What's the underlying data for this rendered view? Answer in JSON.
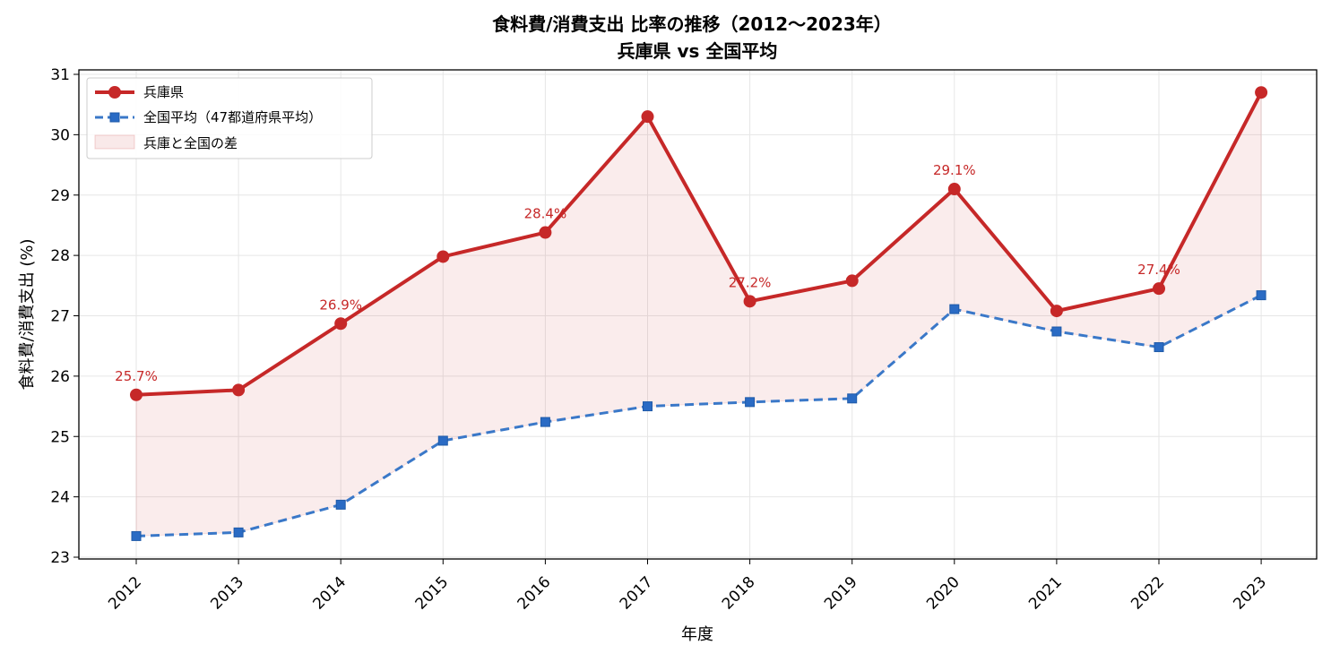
{
  "chart_data": {
    "type": "line",
    "title": "食料費/消費支出 比率の推移（2012〜2023年）",
    "subtitle": "兵庫県 vs 全国平均",
    "xlabel": "年度",
    "ylabel": "食料費/消費支出 (%)",
    "ylim": [
      23,
      31
    ],
    "yticks": [
      "23",
      "24",
      "25",
      "26",
      "27",
      "28",
      "29",
      "30",
      "31"
    ],
    "categories": [
      "2012",
      "2013",
      "2014",
      "2015",
      "2016",
      "2017",
      "2018",
      "2019",
      "2020",
      "2021",
      "2022",
      "2023"
    ],
    "series": [
      {
        "name": "兵庫県",
        "color": "#c62828",
        "marker": "circle",
        "line_style": "solid",
        "values": [
          25.69,
          25.77,
          26.87,
          27.98,
          28.38,
          30.3,
          27.24,
          27.58,
          29.1,
          27.08,
          27.45,
          30.7
        ]
      },
      {
        "name": "全国平均（47都道府県平均）",
        "color": "#3a78c8",
        "marker": "square",
        "line_style": "dashed",
        "values": [
          23.35,
          23.41,
          23.87,
          24.93,
          25.24,
          25.5,
          25.57,
          25.63,
          27.11,
          26.74,
          26.48,
          27.34
        ]
      }
    ],
    "fill_between": {
      "name": "兵庫と全国の差",
      "color": "#c62828"
    },
    "annotations": [
      {
        "x": "2012",
        "text": "25.7%"
      },
      {
        "x": "2014",
        "text": "26.9%"
      },
      {
        "x": "2016",
        "text": "28.4%"
      },
      {
        "x": "2018",
        "text": "27.2%"
      },
      {
        "x": "2020",
        "text": "29.1%"
      },
      {
        "x": "2022",
        "text": "27.4%"
      }
    ],
    "grid": true,
    "legend": "top-left"
  }
}
